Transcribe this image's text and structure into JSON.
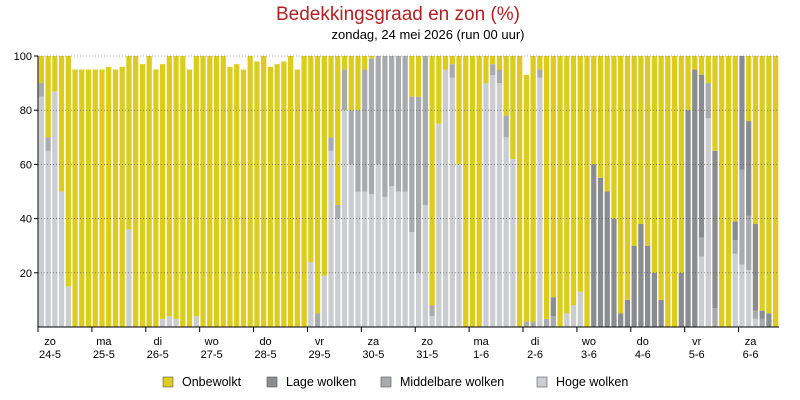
{
  "chart_data": {
    "type": "bar",
    "stacked": true,
    "title": "Bedekkingsgraad en zon (%)",
    "subtitle": "zondag, 24 mei 2026 (run 00 uur)",
    "xlabel": "",
    "ylabel": "",
    "ylim": [
      0,
      100
    ],
    "yticks": [
      20,
      40,
      60,
      80,
      100
    ],
    "grid": true,
    "legend_position": "bottom",
    "x_ticks": [
      {
        "day": "zo",
        "date": "24-5",
        "index": 0
      },
      {
        "day": "ma",
        "date": "25-5",
        "index": 8
      },
      {
        "day": "di",
        "date": "26-5",
        "index": 16
      },
      {
        "day": "wo",
        "date": "27-5",
        "index": 24
      },
      {
        "day": "do",
        "date": "28-5",
        "index": 32
      },
      {
        "day": "vr",
        "date": "29-5",
        "index": 40
      },
      {
        "day": "za",
        "date": "30-5",
        "index": 48
      },
      {
        "day": "zo",
        "date": "31-5",
        "index": 56
      },
      {
        "day": "ma",
        "date": "1-6",
        "index": 64
      },
      {
        "day": "di",
        "date": "2-6",
        "index": 72
      },
      {
        "day": "wo",
        "date": "3-6",
        "index": 80
      },
      {
        "day": "do",
        "date": "4-6",
        "index": 88
      },
      {
        "day": "vr",
        "date": "5-6",
        "index": 96
      },
      {
        "day": "za",
        "date": "6-6",
        "index": 104
      }
    ],
    "series": [
      {
        "name": "Hoge wolken",
        "color": "#cccdd1",
        "values": [
          85,
          65,
          87,
          50,
          15,
          0,
          0,
          0,
          0,
          0,
          0,
          0,
          0,
          36,
          0,
          0,
          0,
          0,
          3,
          4,
          3,
          0,
          0,
          4,
          0,
          0,
          0,
          0,
          0,
          0,
          0,
          0,
          0,
          0,
          0,
          0,
          0,
          0,
          0,
          0,
          24,
          0,
          19,
          65,
          40,
          80,
          60,
          50,
          50,
          49,
          60,
          48,
          52,
          50,
          50,
          35,
          20,
          45,
          4,
          75,
          95,
          92,
          60,
          0,
          0,
          0,
          90,
          93,
          90,
          70,
          62,
          0,
          0,
          0,
          92,
          0,
          0,
          0,
          5,
          8,
          13,
          0,
          0,
          0,
          0,
          0,
          0,
          0,
          0,
          0,
          0,
          0,
          0,
          0,
          0,
          0,
          0,
          0,
          26,
          77,
          0,
          0,
          0,
          27,
          23,
          21,
          3,
          0,
          0,
          0
        ]
      },
      {
        "name": "Middelbare wolken",
        "color": "#a9aaae",
        "values": [
          5,
          5,
          0,
          0,
          0,
          0,
          0,
          0,
          0,
          0,
          0,
          0,
          0,
          0,
          0,
          0,
          0,
          0,
          0,
          0,
          0,
          0,
          0,
          0,
          0,
          0,
          0,
          0,
          0,
          0,
          0,
          0,
          0,
          0,
          0,
          0,
          0,
          0,
          0,
          0,
          0,
          5,
          0,
          5,
          5,
          15,
          20,
          30,
          45,
          50,
          40,
          52,
          48,
          50,
          50,
          50,
          65,
          55,
          4,
          0,
          0,
          5,
          0,
          0,
          0,
          0,
          0,
          4,
          5,
          8,
          0,
          0,
          2,
          2,
          3,
          3,
          4,
          0,
          0,
          0,
          0,
          0,
          0,
          0,
          0,
          0,
          0,
          0,
          0,
          0,
          0,
          0,
          0,
          0,
          0,
          0,
          0,
          0,
          7,
          13,
          7,
          0,
          0,
          5,
          35,
          20,
          3,
          3,
          0,
          0
        ]
      },
      {
        "name": "Lage wolken",
        "color": "#8b8c90",
        "values": [
          0,
          0,
          0,
          0,
          0,
          0,
          0,
          0,
          0,
          0,
          0,
          0,
          0,
          0,
          0,
          0,
          0,
          0,
          0,
          0,
          0,
          0,
          0,
          0,
          0,
          0,
          0,
          0,
          0,
          0,
          0,
          0,
          0,
          0,
          0,
          0,
          0,
          0,
          0,
          0,
          0,
          0,
          0,
          0,
          0,
          0,
          0,
          0,
          0,
          0,
          0,
          0,
          0,
          0,
          0,
          0,
          0,
          0,
          0,
          0,
          0,
          0,
          0,
          0,
          0,
          0,
          0,
          0,
          0,
          0,
          0,
          0,
          0,
          0,
          0,
          0,
          7,
          0,
          0,
          0,
          0,
          0,
          60,
          55,
          50,
          40,
          5,
          10,
          30,
          38,
          30,
          20,
          10,
          0,
          0,
          20,
          80,
          95,
          60,
          0,
          58,
          0,
          0,
          7,
          42,
          35,
          32,
          3,
          5,
          0
        ]
      },
      {
        "name": "Onbewolkt",
        "color": "#dccc1e",
        "values": [
          10,
          30,
          13,
          50,
          85,
          95,
          95,
          95,
          95,
          95,
          96,
          95,
          96,
          64,
          100,
          97,
          100,
          95,
          94,
          96,
          97,
          100,
          95,
          96,
          100,
          100,
          100,
          100,
          96,
          97,
          95,
          100,
          98,
          100,
          96,
          97,
          98,
          100,
          95,
          100,
          76,
          95,
          81,
          30,
          55,
          5,
          20,
          20,
          5,
          1,
          0,
          0,
          0,
          0,
          0,
          15,
          15,
          0,
          92,
          25,
          5,
          3,
          40,
          100,
          100,
          100,
          10,
          3,
          5,
          22,
          38,
          100,
          91,
          98,
          5,
          97,
          89,
          100,
          95,
          92,
          87,
          100,
          40,
          45,
          50,
          60,
          95,
          90,
          70,
          62,
          70,
          80,
          90,
          100,
          100,
          80,
          20,
          5,
          7,
          10,
          35,
          100,
          100,
          61,
          0,
          24,
          62,
          94,
          95,
          100
        ]
      }
    ]
  },
  "legend": {
    "items": [
      {
        "label": "Onbewolkt",
        "color": "#dccc1e"
      },
      {
        "label": "Lage wolken",
        "color": "#8b8c90"
      },
      {
        "label": "Middelbare wolken",
        "color": "#a9aaae"
      },
      {
        "label": "Hoge wolken",
        "color": "#cccdd1"
      }
    ]
  }
}
